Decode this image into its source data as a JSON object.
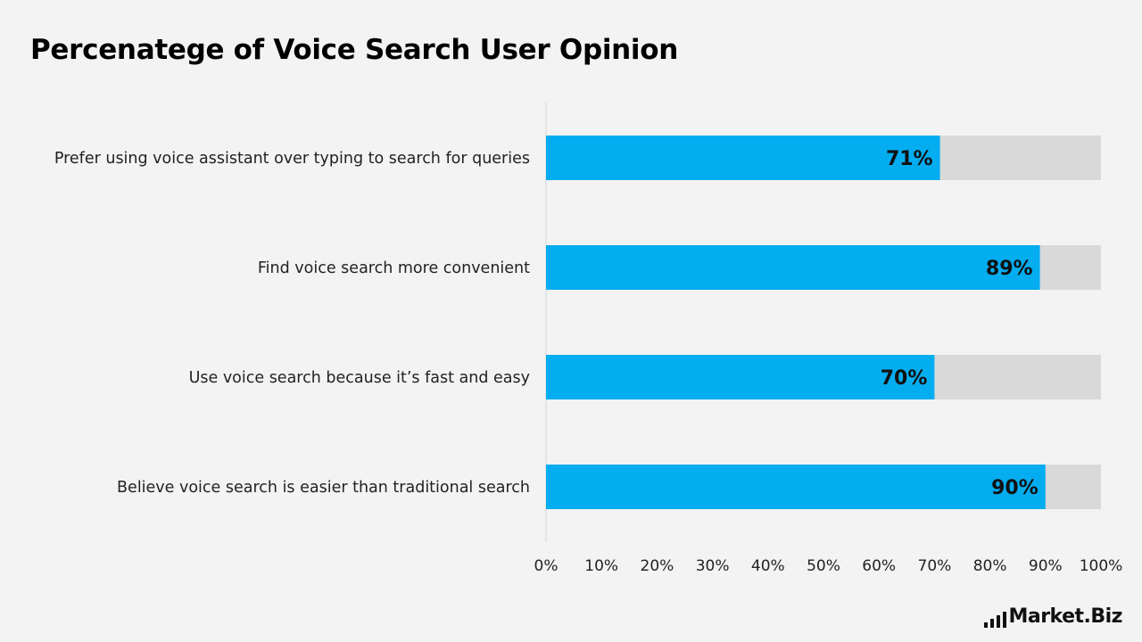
{
  "chart_data": {
    "type": "bar",
    "orientation": "horizontal",
    "title": "Percenatege of Voice Search User Opinion",
    "categories": [
      "Prefer using voice assistant over typing to search for queries",
      "Find voice search more convenient",
      "Use voice search because it’s fast and easy",
      "Believe voice search is easier than traditional search"
    ],
    "values": [
      71,
      89,
      70,
      90
    ],
    "value_labels": [
      "71%",
      "89%",
      "70%",
      "90%"
    ],
    "xlim": [
      0,
      100
    ],
    "xticks": [
      "0%",
      "10%",
      "20%",
      "30%",
      "40%",
      "50%",
      "60%",
      "70%",
      "80%",
      "90%",
      "100%"
    ],
    "background_bar": true,
    "grid": false,
    "colors": {
      "bar": "#04adef",
      "track": "#d9d9d9",
      "axis": "#d4d4d4",
      "background": "#f3f3f3"
    }
  },
  "branding": {
    "logo_text": "Market.Biz"
  }
}
